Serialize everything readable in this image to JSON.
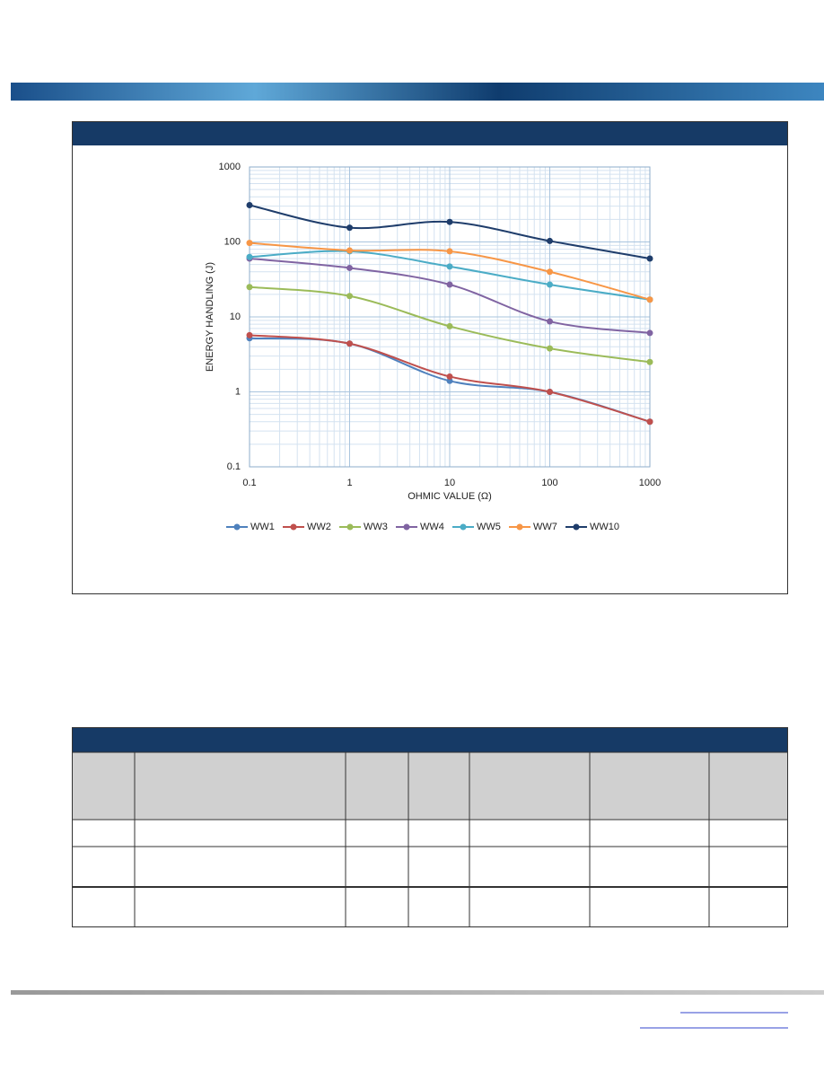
{
  "chart_data": {
    "type": "line",
    "x": [
      0.1,
      1,
      10,
      100,
      1000
    ],
    "xlabel": "OHMIC VALUE (Ω)",
    "ylabel": "ENERGY HANDLING (J)",
    "xscale": "log",
    "yscale": "log",
    "xlim": [
      0.1,
      1000
    ],
    "ylim": [
      0.1,
      1000
    ],
    "xticks": [
      0.1,
      1,
      10,
      100,
      1000
    ],
    "yticks": [
      0.1,
      1,
      10,
      100,
      1000
    ],
    "grid": true,
    "minor_grid": true,
    "legend": "bottom",
    "smooth": true,
    "series": [
      {
        "name": "WW1",
        "color": "#4f81bd",
        "values": [
          5.2,
          4.4,
          1.4,
          1.0,
          0.4
        ]
      },
      {
        "name": "WW2",
        "color": "#c0504d",
        "values": [
          5.7,
          4.4,
          1.6,
          1.0,
          0.4
        ]
      },
      {
        "name": "WW3",
        "color": "#9bbb59",
        "values": [
          25,
          19,
          7.5,
          3.8,
          2.5
        ]
      },
      {
        "name": "WW4",
        "color": "#8064a2",
        "values": [
          60,
          45,
          27,
          8.7,
          6.1
        ]
      },
      {
        "name": "WW5",
        "color": "#4bacc6",
        "values": [
          63,
          75,
          47,
          27,
          17
        ]
      },
      {
        "name": "WW7",
        "color": "#f79646",
        "values": [
          97,
          77,
          75,
          40,
          17
        ]
      },
      {
        "name": "WW10",
        "color": "#1f3d6b",
        "values": [
          310,
          155,
          185,
          103,
          60
        ]
      }
    ]
  }
}
